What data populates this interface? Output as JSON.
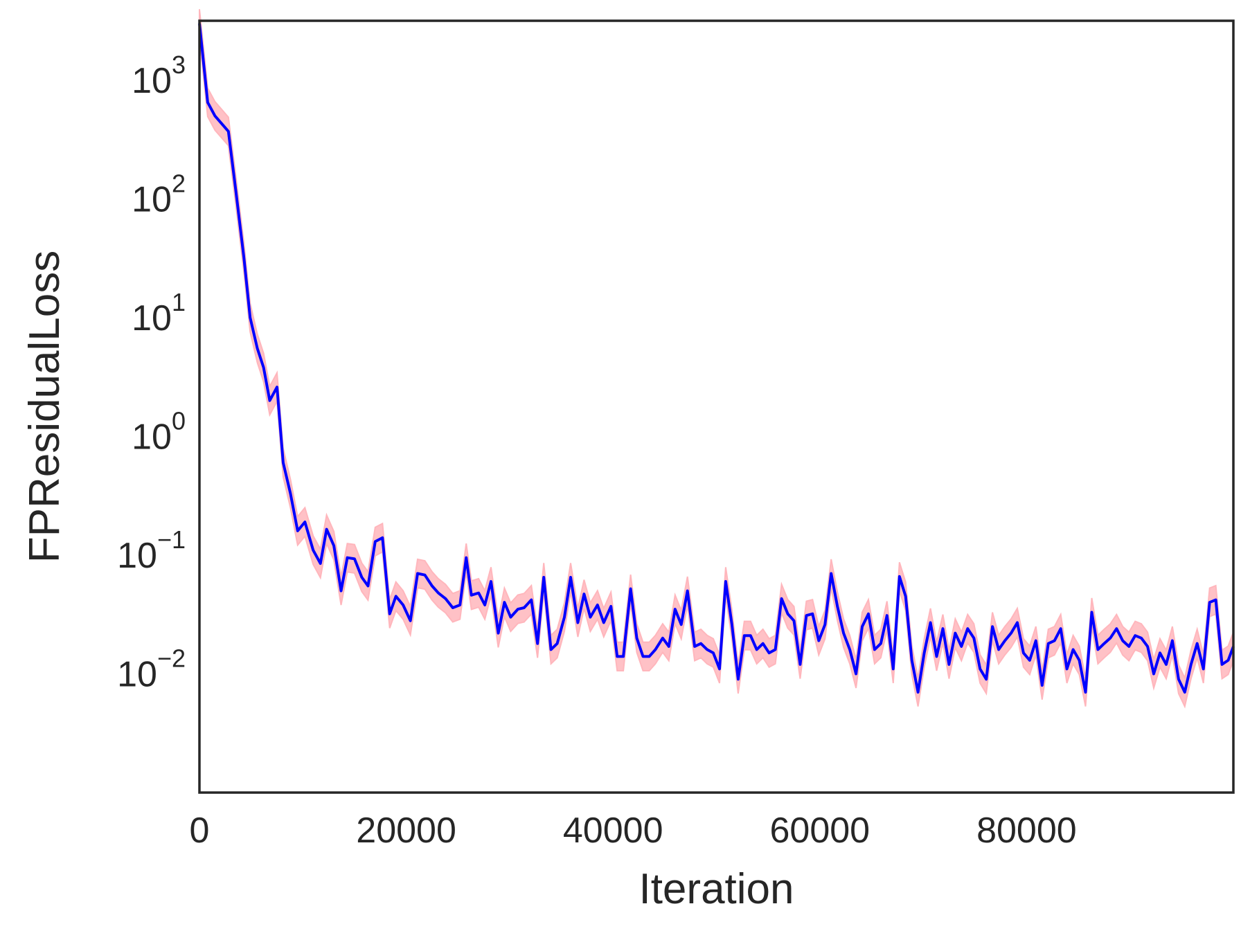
{
  "chart_data": {
    "type": "line",
    "title": "",
    "xlabel": "Iteration",
    "ylabel": "FPResidualLoss",
    "xlim": [
      0,
      100000
    ],
    "ylim_log10": [
      -3.0,
      3.5
    ],
    "yscale": "log",
    "grid": false,
    "legend": "none",
    "x_ticks": [
      {
        "value": 0,
        "label": "0"
      },
      {
        "value": 20000,
        "label": "20000"
      },
      {
        "value": 40000,
        "label": "40000"
      },
      {
        "value": 60000,
        "label": "60000"
      },
      {
        "value": 80000,
        "label": "80000"
      }
    ],
    "y_ticks": [
      {
        "value": 1000,
        "base": "10",
        "exp": "3"
      },
      {
        "value": 100,
        "base": "10",
        "exp": "2"
      },
      {
        "value": 10,
        "base": "10",
        "exp": "1"
      },
      {
        "value": 1,
        "base": "10",
        "exp": "0"
      },
      {
        "value": 0.1,
        "base": "10",
        "exp": "−1"
      },
      {
        "value": 0.01,
        "base": "10",
        "exp": "−2"
      }
    ],
    "colors": {
      "line": "#0000ff",
      "band": "#ffb6bc",
      "axes": "#262626",
      "text": "#262626"
    },
    "series": [
      {
        "values": [
          [
            0,
            3000
          ],
          [
            800,
            650
          ],
          [
            1500,
            500
          ],
          [
            2800,
            370
          ],
          [
            3500,
            120
          ],
          [
            4300,
            32
          ],
          [
            4900,
            10
          ],
          [
            5600,
            5.5
          ],
          [
            6200,
            3.8
          ],
          [
            6800,
            2.0
          ],
          [
            7500,
            2.6
          ],
          [
            8100,
            0.6
          ],
          [
            8800,
            0.33
          ],
          [
            9500,
            0.16
          ],
          [
            10200,
            0.19
          ],
          [
            11000,
            0.11
          ],
          [
            11700,
            0.085
          ],
          [
            12300,
            0.165
          ],
          [
            13000,
            0.12
          ],
          [
            13700,
            0.05
          ],
          [
            14300,
            0.095
          ],
          [
            15000,
            0.093
          ],
          [
            15700,
            0.065
          ],
          [
            16300,
            0.055
          ],
          [
            17000,
            0.13
          ],
          [
            17700,
            0.14
          ],
          [
            18400,
            0.032
          ],
          [
            19000,
            0.045
          ],
          [
            19700,
            0.038
          ],
          [
            20400,
            0.028
          ],
          [
            21100,
            0.07
          ],
          [
            21800,
            0.068
          ],
          [
            22500,
            0.055
          ],
          [
            23100,
            0.048
          ],
          [
            23800,
            0.043
          ],
          [
            24500,
            0.036
          ],
          [
            25200,
            0.038
          ],
          [
            25800,
            0.095
          ],
          [
            26300,
            0.046
          ],
          [
            27000,
            0.048
          ],
          [
            27600,
            0.038
          ],
          [
            28200,
            0.06
          ],
          [
            28900,
            0.022
          ],
          [
            29500,
            0.04
          ],
          [
            30100,
            0.03
          ],
          [
            30800,
            0.035
          ],
          [
            31400,
            0.036
          ],
          [
            32100,
            0.042
          ],
          [
            32700,
            0.018
          ],
          [
            33300,
            0.065
          ],
          [
            34000,
            0.016
          ],
          [
            34600,
            0.018
          ],
          [
            35300,
            0.03
          ],
          [
            35900,
            0.065
          ],
          [
            36600,
            0.027
          ],
          [
            37200,
            0.047
          ],
          [
            37800,
            0.03
          ],
          [
            38500,
            0.038
          ],
          [
            39100,
            0.027
          ],
          [
            39800,
            0.037
          ],
          [
            40400,
            0.014
          ],
          [
            41000,
            0.014
          ],
          [
            41700,
            0.052
          ],
          [
            42300,
            0.02
          ],
          [
            42900,
            0.014
          ],
          [
            43500,
            0.014
          ],
          [
            44100,
            0.016
          ],
          [
            44800,
            0.02
          ],
          [
            45400,
            0.017
          ],
          [
            46000,
            0.035
          ],
          [
            46600,
            0.026
          ],
          [
            47200,
            0.05
          ],
          [
            47900,
            0.017
          ],
          [
            48500,
            0.018
          ],
          [
            49100,
            0.016
          ],
          [
            49700,
            0.015
          ],
          [
            50300,
            0.011
          ],
          [
            50900,
            0.06
          ],
          [
            51500,
            0.026
          ],
          [
            52100,
            0.009
          ],
          [
            52700,
            0.021
          ],
          [
            53300,
            0.021
          ],
          [
            53900,
            0.016
          ],
          [
            54500,
            0.018
          ],
          [
            55100,
            0.015
          ],
          [
            55700,
            0.016
          ],
          [
            56300,
            0.043
          ],
          [
            56900,
            0.032
          ],
          [
            57500,
            0.028
          ],
          [
            58100,
            0.012
          ],
          [
            58700,
            0.031
          ],
          [
            59300,
            0.032
          ],
          [
            59900,
            0.019
          ],
          [
            60500,
            0.026
          ],
          [
            61100,
            0.07
          ],
          [
            61700,
            0.037
          ],
          [
            62300,
            0.022
          ],
          [
            62900,
            0.016
          ],
          [
            63500,
            0.01
          ],
          [
            64100,
            0.025
          ],
          [
            64700,
            0.032
          ],
          [
            65300,
            0.016
          ],
          [
            65900,
            0.018
          ],
          [
            66500,
            0.031
          ],
          [
            67100,
            0.011
          ],
          [
            67700,
            0.066
          ],
          [
            68300,
            0.045
          ],
          [
            68900,
            0.013
          ],
          [
            69500,
            0.007
          ],
          [
            70100,
            0.015
          ],
          [
            70700,
            0.027
          ],
          [
            71300,
            0.014
          ],
          [
            71900,
            0.024
          ],
          [
            72500,
            0.012
          ],
          [
            73100,
            0.022
          ],
          [
            73700,
            0.017
          ],
          [
            74300,
            0.024
          ],
          [
            74900,
            0.02
          ],
          [
            75500,
            0.011
          ],
          [
            76100,
            0.009
          ],
          [
            76700,
            0.025
          ],
          [
            77300,
            0.016
          ],
          [
            77900,
            0.019
          ],
          [
            78500,
            0.022
          ],
          [
            79100,
            0.027
          ],
          [
            79700,
            0.015
          ],
          [
            80300,
            0.013
          ],
          [
            80900,
            0.019
          ],
          [
            81500,
            0.008
          ],
          [
            82100,
            0.018
          ],
          [
            82700,
            0.019
          ],
          [
            83300,
            0.024
          ],
          [
            83900,
            0.011
          ],
          [
            84500,
            0.016
          ],
          [
            85100,
            0.013
          ],
          [
            85700,
            0.007
          ],
          [
            86300,
            0.033
          ],
          [
            86900,
            0.016
          ],
          [
            87500,
            0.018
          ],
          [
            88100,
            0.02
          ],
          [
            88700,
            0.024
          ],
          [
            89300,
            0.019
          ],
          [
            89900,
            0.017
          ],
          [
            90500,
            0.021
          ],
          [
            91100,
            0.02
          ],
          [
            91700,
            0.017
          ],
          [
            92300,
            0.01
          ],
          [
            92900,
            0.015
          ],
          [
            93500,
            0.012
          ],
          [
            94100,
            0.019
          ],
          [
            94700,
            0.009
          ],
          [
            95300,
            0.007
          ],
          [
            95900,
            0.012
          ],
          [
            96500,
            0.018
          ],
          [
            97100,
            0.011
          ],
          [
            97700,
            0.04
          ],
          [
            98300,
            0.042
          ],
          [
            98900,
            0.012
          ],
          [
            99500,
            0.013
          ],
          [
            100000,
            0.017
          ]
        ],
        "band_halfwidth_log10": 0.12
      }
    ]
  }
}
